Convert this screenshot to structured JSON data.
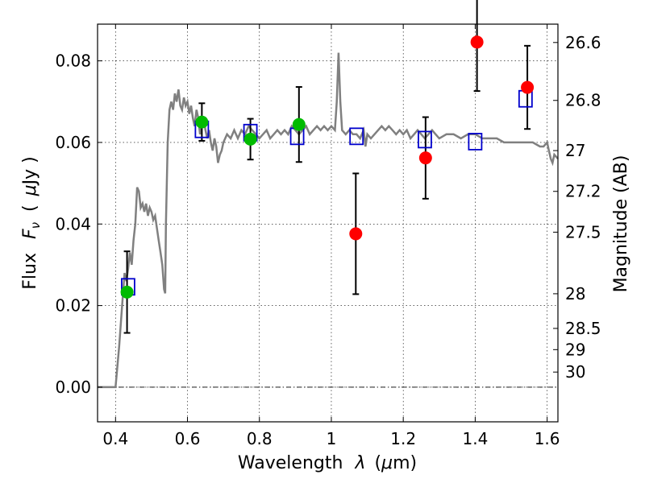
{
  "chart_data": {
    "type": "scatter",
    "xlabel_text": "Wavelength",
    "xlabel_symbol": "λ",
    "xlabel_unit_open": "(",
    "xlabel_unit_mu": "μ",
    "xlabel_unit_rest": "m)",
    "ylabel_text": "Flux",
    "ylabel_symbol": "F",
    "ylabel_sub": "ν",
    "ylabel_unit_open": "(",
    "ylabel_unit_mu": "μ",
    "ylabel_unit_rest": "Jy )",
    "y2label": "Magnitude (AB)",
    "xlim": [
      0.35,
      1.63
    ],
    "ylim": [
      -0.0085,
      0.089
    ],
    "grid": true,
    "x_ticks": [
      {
        "v": 0.4,
        "label": "0.4"
      },
      {
        "v": 0.6,
        "label": "0.6"
      },
      {
        "v": 0.8,
        "label": "0.8"
      },
      {
        "v": 1.0,
        "label": "1"
      },
      {
        "v": 1.2,
        "label": "1.2"
      },
      {
        "v": 1.4,
        "label": "1.4"
      },
      {
        "v": 1.6,
        "label": "1.6"
      }
    ],
    "y_ticks": [
      {
        "v": 0.0,
        "label": "0.00"
      },
      {
        "v": 0.02,
        "label": "0.02"
      },
      {
        "v": 0.04,
        "label": "0.04"
      },
      {
        "v": 0.06,
        "label": "0.06"
      },
      {
        "v": 0.08,
        "label": "0.08"
      }
    ],
    "mag_ticks": [
      {
        "flux": 0.0845,
        "label": "26.6"
      },
      {
        "flux": 0.0703,
        "label": "26.8"
      },
      {
        "flux": 0.058,
        "label": "27"
      },
      {
        "flux": 0.048,
        "label": "27.2"
      },
      {
        "flux": 0.038,
        "label": "27.5"
      },
      {
        "flux": 0.0229,
        "label": "28"
      },
      {
        "flux": 0.0144,
        "label": "28.5"
      },
      {
        "flux": 0.0092,
        "label": "29"
      },
      {
        "flux": 0.0037,
        "label": "30"
      }
    ],
    "colors": {
      "spectrum": "#808080",
      "model": "#0000cc",
      "detection_green": "#00bb00",
      "detection_red": "#ff0000",
      "errorbar": "#000000",
      "zero_line": "#000000"
    },
    "spectrum": [
      [
        0.35,
        0.0
      ],
      [
        0.4,
        0.0
      ],
      [
        0.41,
        0.01
      ],
      [
        0.42,
        0.022
      ],
      [
        0.425,
        0.028
      ],
      [
        0.43,
        0.026
      ],
      [
        0.435,
        0.029
      ],
      [
        0.44,
        0.033
      ],
      [
        0.445,
        0.03
      ],
      [
        0.45,
        0.036
      ],
      [
        0.455,
        0.04
      ],
      [
        0.46,
        0.049
      ],
      [
        0.465,
        0.048
      ],
      [
        0.47,
        0.044
      ],
      [
        0.475,
        0.045
      ],
      [
        0.48,
        0.043
      ],
      [
        0.485,
        0.045
      ],
      [
        0.49,
        0.042
      ],
      [
        0.495,
        0.044
      ],
      [
        0.5,
        0.043
      ],
      [
        0.505,
        0.041
      ],
      [
        0.51,
        0.042
      ],
      [
        0.515,
        0.039
      ],
      [
        0.52,
        0.036
      ],
      [
        0.525,
        0.033
      ],
      [
        0.53,
        0.03
      ],
      [
        0.535,
        0.024
      ],
      [
        0.538,
        0.023
      ],
      [
        0.54,
        0.04
      ],
      [
        0.545,
        0.06
      ],
      [
        0.55,
        0.068
      ],
      [
        0.555,
        0.07
      ],
      [
        0.56,
        0.068
      ],
      [
        0.565,
        0.072
      ],
      [
        0.57,
        0.07
      ],
      [
        0.575,
        0.073
      ],
      [
        0.58,
        0.069
      ],
      [
        0.585,
        0.068
      ],
      [
        0.59,
        0.071
      ],
      [
        0.595,
        0.069
      ],
      [
        0.6,
        0.07
      ],
      [
        0.605,
        0.067
      ],
      [
        0.61,
        0.069
      ],
      [
        0.615,
        0.066
      ],
      [
        0.62,
        0.064
      ],
      [
        0.625,
        0.068
      ],
      [
        0.63,
        0.066
      ],
      [
        0.635,
        0.062
      ],
      [
        0.64,
        0.064
      ],
      [
        0.645,
        0.066
      ],
      [
        0.65,
        0.063
      ],
      [
        0.655,
        0.061
      ],
      [
        0.66,
        0.063
      ],
      [
        0.665,
        0.06
      ],
      [
        0.67,
        0.058
      ],
      [
        0.675,
        0.061
      ],
      [
        0.68,
        0.059
      ],
      [
        0.685,
        0.055
      ],
      [
        0.69,
        0.057
      ],
      [
        0.695,
        0.058
      ],
      [
        0.7,
        0.06
      ],
      [
        0.71,
        0.062
      ],
      [
        0.72,
        0.061
      ],
      [
        0.73,
        0.063
      ],
      [
        0.74,
        0.061
      ],
      [
        0.75,
        0.063
      ],
      [
        0.76,
        0.062
      ],
      [
        0.77,
        0.064
      ],
      [
        0.78,
        0.063
      ],
      [
        0.79,
        0.062
      ],
      [
        0.8,
        0.061
      ],
      [
        0.81,
        0.062
      ],
      [
        0.82,
        0.063
      ],
      [
        0.83,
        0.061
      ],
      [
        0.84,
        0.062
      ],
      [
        0.85,
        0.063
      ],
      [
        0.86,
        0.062
      ],
      [
        0.87,
        0.063
      ],
      [
        0.88,
        0.062
      ],
      [
        0.89,
        0.064
      ],
      [
        0.9,
        0.063
      ],
      [
        0.91,
        0.062
      ],
      [
        0.92,
        0.063
      ],
      [
        0.93,
        0.064
      ],
      [
        0.94,
        0.062
      ],
      [
        0.95,
        0.063
      ],
      [
        0.96,
        0.064
      ],
      [
        0.97,
        0.063
      ],
      [
        0.98,
        0.064
      ],
      [
        0.99,
        0.063
      ],
      [
        1.0,
        0.064
      ],
      [
        1.01,
        0.063
      ],
      [
        1.015,
        0.07
      ],
      [
        1.02,
        0.082
      ],
      [
        1.025,
        0.07
      ],
      [
        1.03,
        0.063
      ],
      [
        1.04,
        0.062
      ],
      [
        1.05,
        0.063
      ],
      [
        1.06,
        0.062
      ],
      [
        1.07,
        0.062
      ],
      [
        1.08,
        0.061
      ],
      [
        1.09,
        0.063
      ],
      [
        1.095,
        0.059
      ],
      [
        1.1,
        0.062
      ],
      [
        1.11,
        0.061
      ],
      [
        1.12,
        0.062
      ],
      [
        1.13,
        0.063
      ],
      [
        1.14,
        0.064
      ],
      [
        1.15,
        0.063
      ],
      [
        1.16,
        0.064
      ],
      [
        1.17,
        0.063
      ],
      [
        1.18,
        0.062
      ],
      [
        1.19,
        0.063
      ],
      [
        1.2,
        0.062
      ],
      [
        1.21,
        0.063
      ],
      [
        1.22,
        0.061
      ],
      [
        1.23,
        0.062
      ],
      [
        1.24,
        0.063
      ],
      [
        1.25,
        0.062
      ],
      [
        1.26,
        0.061
      ],
      [
        1.27,
        0.062
      ],
      [
        1.28,
        0.063
      ],
      [
        1.29,
        0.062
      ],
      [
        1.3,
        0.061
      ],
      [
        1.32,
        0.062
      ],
      [
        1.34,
        0.062
      ],
      [
        1.36,
        0.061
      ],
      [
        1.38,
        0.062
      ],
      [
        1.4,
        0.062
      ],
      [
        1.42,
        0.061
      ],
      [
        1.44,
        0.061
      ],
      [
        1.46,
        0.061
      ],
      [
        1.48,
        0.06
      ],
      [
        1.5,
        0.06
      ],
      [
        1.52,
        0.06
      ],
      [
        1.54,
        0.06
      ],
      [
        1.56,
        0.06
      ],
      [
        1.58,
        0.059
      ],
      [
        1.59,
        0.059
      ],
      [
        1.6,
        0.06
      ],
      [
        1.605,
        0.058
      ],
      [
        1.61,
        0.056
      ],
      [
        1.615,
        0.055
      ],
      [
        1.62,
        0.057
      ],
      [
        1.63,
        0.056
      ]
    ],
    "model_points": [
      {
        "x": 0.435,
        "y": 0.0246
      },
      {
        "x": 0.64,
        "y": 0.0632
      },
      {
        "x": 0.775,
        "y": 0.0624
      },
      {
        "x": 0.905,
        "y": 0.0615
      },
      {
        "x": 1.07,
        "y": 0.0615
      },
      {
        "x": 1.26,
        "y": 0.0607
      },
      {
        "x": 1.4,
        "y": 0.0602
      },
      {
        "x": 1.54,
        "y": 0.0707
      }
    ],
    "detections_green": [
      {
        "x": 0.432,
        "y": 0.0233,
        "err": 0.01
      },
      {
        "x": 0.64,
        "y": 0.065,
        "err": 0.0046
      },
      {
        "x": 0.775,
        "y": 0.0608,
        "err": 0.005
      },
      {
        "x": 0.91,
        "y": 0.0644,
        "err": 0.0092
      }
    ],
    "detections_red": [
      {
        "x": 1.068,
        "y": 0.0376,
        "err": 0.0148
      },
      {
        "x": 1.262,
        "y": 0.0562,
        "err": 0.01
      },
      {
        "x": 1.405,
        "y": 0.0846,
        "err": 0.012
      },
      {
        "x": 1.545,
        "y": 0.0735,
        "err": 0.0102
      }
    ]
  }
}
